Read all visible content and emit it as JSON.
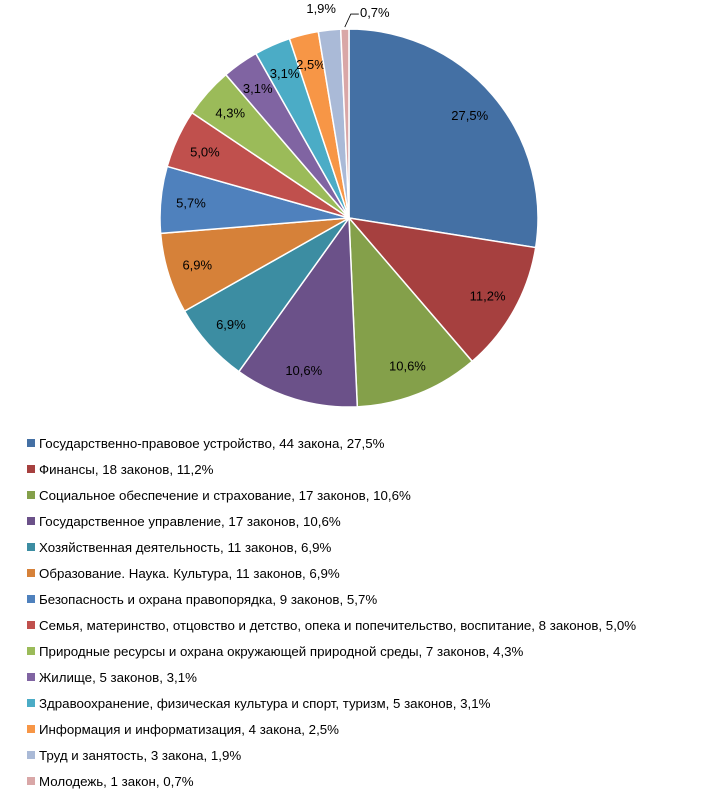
{
  "chart_data": {
    "type": "pie",
    "start": "top",
    "direction": "clockwise",
    "slices": [
      {
        "name": "Государственно-правовое устройство",
        "count": 44,
        "value": 27.5,
        "label": "27,5%",
        "legend": "Государственно-правовое устройство, 44 закона, 27,5%",
        "color": "#4470A4"
      },
      {
        "name": "Финансы",
        "count": 18,
        "value": 11.2,
        "label": "11,2%",
        "legend": "Финансы, 18 законов, 11,2%",
        "color": "#A6403F"
      },
      {
        "name": "Социальное обеспечение и страхование",
        "count": 17,
        "value": 10.6,
        "label": "10,6%",
        "legend": "Социальное обеспечение и страхование, 17 законов, 10,6%",
        "color": "#84A04A"
      },
      {
        "name": "Государственное управление",
        "count": 17,
        "value": 10.6,
        "label": "10,6%",
        "legend": "Государственное управление, 17 законов, 10,6%",
        "color": "#6B5189"
      },
      {
        "name": "Хозяйственная деятельность",
        "count": 11,
        "value": 6.9,
        "label": "6,9%",
        "legend": "Хозяйственная деятельность, 11 законов, 6,9%",
        "color": "#3C8DA2"
      },
      {
        "name": "Образование. Наука. Культура",
        "count": 11,
        "value": 6.9,
        "label": "6,9%",
        "legend": "Образование. Наука. Культура, 11 законов, 6,9%",
        "color": "#D68139"
      },
      {
        "name": "Безопасность и охрана правопорядка",
        "count": 9,
        "value": 5.7,
        "label": "5,7%",
        "legend": "Безопасность и охрана правопорядка, 9 законов, 5,7%",
        "color": "#4F81BD"
      },
      {
        "name": "Семья, материнство, отцовство и детство, опека и попечительство, воспитание",
        "count": 8,
        "value": 5.0,
        "label": "5,0%",
        "legend": "Семья, материнство, отцовство и детство, опека и попечительство, воспитание, 8 законов, 5,0%",
        "color": "#C0504D"
      },
      {
        "name": "Природные ресурсы и охрана окружающей природной среды",
        "count": 7,
        "value": 4.3,
        "label": "4,3%",
        "legend": "Природные ресурсы и охрана окружающей природной среды, 7 законов, 4,3%",
        "color": "#9BBB59"
      },
      {
        "name": "Жилище",
        "count": 5,
        "value": 3.1,
        "label": "3,1%",
        "legend": "Жилище, 5 законов, 3,1%",
        "color": "#8064A2"
      },
      {
        "name": "Здравоохранение, физическая культура и спорт, туризм",
        "count": 5,
        "value": 3.1,
        "label": "3,1%",
        "legend": "Здравоохранение, физическая культура и спорт, туризм, 5 законов, 3,1%",
        "color": "#4BACC6"
      },
      {
        "name": "Информация и информатизация",
        "count": 4,
        "value": 2.5,
        "label": "2,5%",
        "legend": "Информация и информатизация, 4 закона, 2,5%",
        "color": "#F79646"
      },
      {
        "name": "Труд и занятость",
        "count": 3,
        "value": 1.9,
        "label": "1,9%",
        "legend": "Труд и занятость, 3 закона, 1,9%",
        "color": "#AABAD7"
      },
      {
        "name": "Молодежь",
        "count": 1,
        "value": 0.7,
        "label": "0,7%",
        "legend": "Молодежь, 1 закон, 0,7%",
        "color": "#D9A7A7"
      }
    ],
    "legend_position": "bottom"
  }
}
